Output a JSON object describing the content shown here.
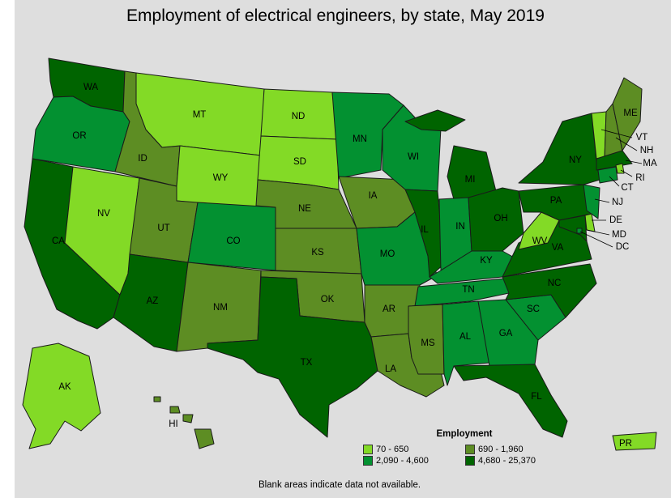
{
  "title": "Employment of electrical engineers, by state, May 2019",
  "legend": {
    "title": "Employment",
    "bins": [
      {
        "label": "70 - 650",
        "color": "#83da26"
      },
      {
        "label": "690 - 1,960",
        "color": "#5d8d23"
      },
      {
        "label": "2,090 - 4,600",
        "color": "#039131"
      },
      {
        "label": "4,680 - 25,370",
        "color": "#006400"
      }
    ]
  },
  "footnote": "Blank areas indicate data not available.",
  "states": {
    "WA": 3,
    "OR": 2,
    "CA": 3,
    "NV": 0,
    "ID": 1,
    "MT": 0,
    "WY": 0,
    "UT": 1,
    "AZ": 3,
    "CO": 2,
    "NM": 1,
    "ND": 0,
    "SD": 0,
    "NE": 1,
    "KS": 1,
    "OK": 1,
    "TX": 3,
    "MN": 2,
    "IA": 1,
    "MO": 2,
    "AR": 1,
    "LA": 1,
    "WI": 2,
    "IL": 3,
    "MI": 3,
    "IN": 2,
    "OH": 3,
    "KY": 2,
    "TN": 2,
    "MS": 1,
    "AL": 2,
    "GA": 2,
    "FL": 3,
    "SC": 2,
    "NC": 3,
    "VA": 3,
    "WV": 0,
    "PA": 3,
    "NY": 3,
    "VT": 0,
    "NH": 1,
    "ME": 1,
    "MA": 3,
    "RI": 0,
    "CT": 2,
    "NJ": 2,
    "DE": 0,
    "MD": 3,
    "DC": 2,
    "AK": 0,
    "HI": 1,
    "PR": 0
  },
  "labels": [
    "WA",
    "OR",
    "CA",
    "NV",
    "ID",
    "MT",
    "WY",
    "UT",
    "AZ",
    "CO",
    "NM",
    "ND",
    "SD",
    "NE",
    "KS",
    "OK",
    "TX",
    "MN",
    "IA",
    "MO",
    "AR",
    "LA",
    "WI",
    "IL",
    "MI",
    "IN",
    "OH",
    "KY",
    "TN",
    "MS",
    "AL",
    "GA",
    "FL",
    "SC",
    "NC",
    "VA",
    "WV",
    "PA",
    "NY",
    "ME",
    "AK",
    "HI",
    "PR",
    "VT",
    "NH",
    "MA",
    "RI",
    "CT",
    "NJ",
    "DE",
    "MD",
    "DC"
  ]
}
